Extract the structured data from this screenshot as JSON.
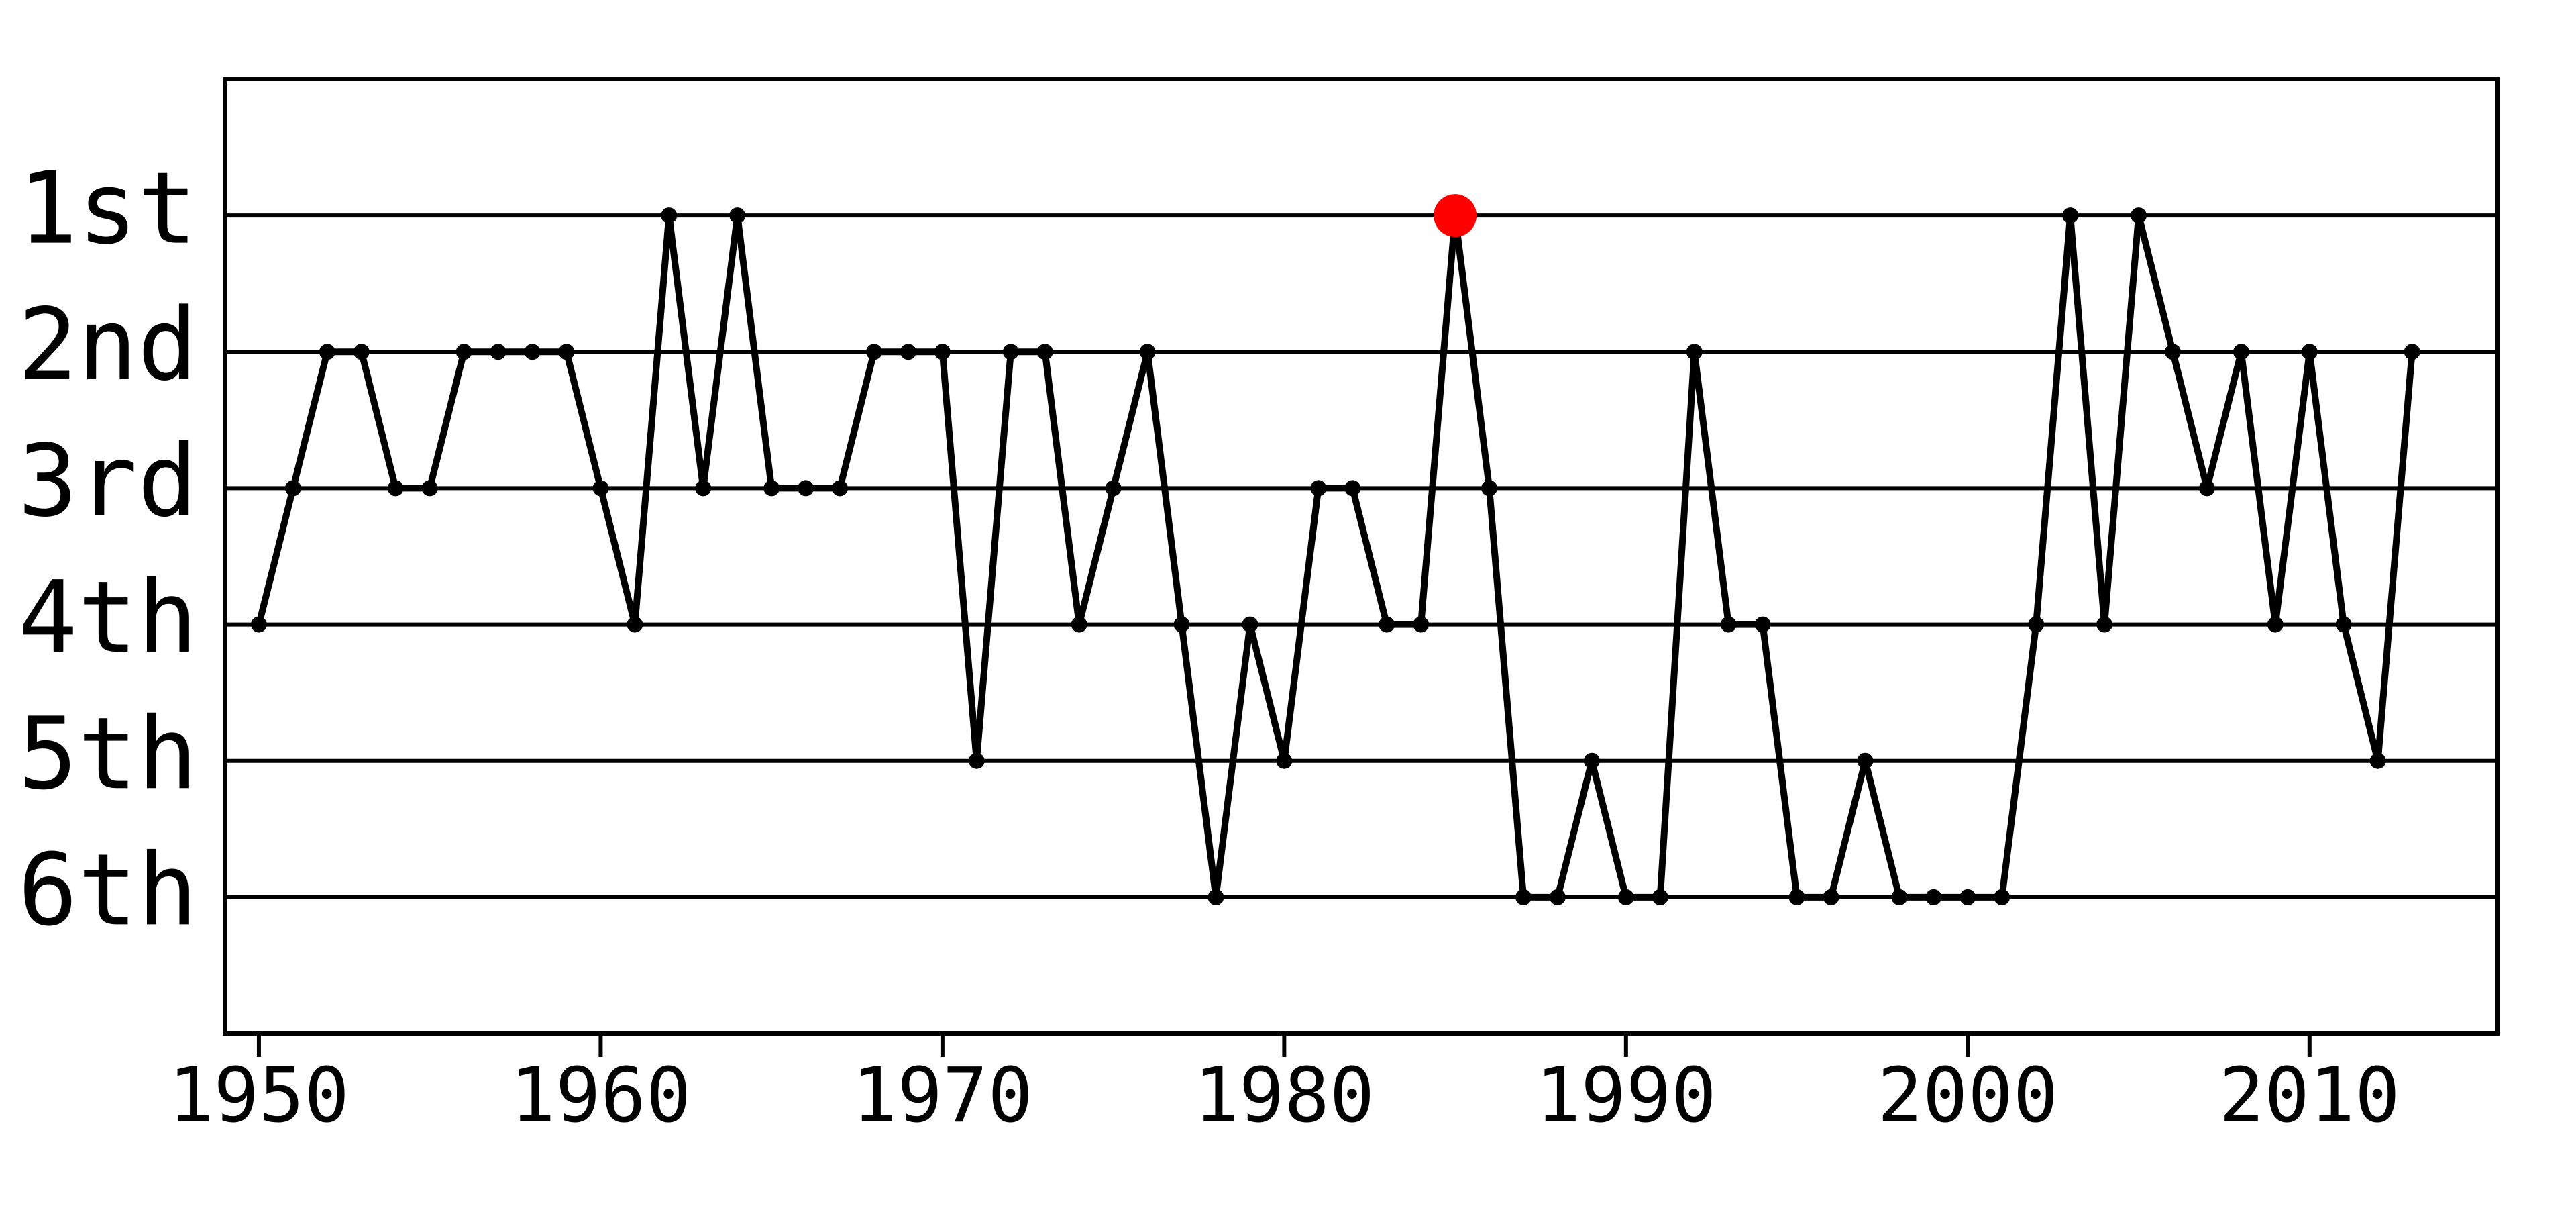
{
  "chart_data": {
    "type": "line",
    "x": [
      1950,
      1951,
      1952,
      1953,
      1954,
      1955,
      1956,
      1957,
      1958,
      1959,
      1960,
      1961,
      1962,
      1963,
      1964,
      1965,
      1966,
      1967,
      1968,
      1969,
      1970,
      1971,
      1972,
      1973,
      1974,
      1975,
      1976,
      1977,
      1978,
      1979,
      1980,
      1981,
      1982,
      1983,
      1984,
      1985,
      1986,
      1987,
      1988,
      1989,
      1990,
      1991,
      1992,
      1993,
      1994,
      1995,
      1996,
      1997,
      1998,
      1999,
      2000,
      2001,
      2002,
      2003,
      2004,
      2005,
      2006,
      2007,
      2008,
      2009,
      2010,
      2011,
      2012,
      2013
    ],
    "values": [
      4,
      3,
      2,
      2,
      3,
      3,
      2,
      2,
      2,
      2,
      3,
      4,
      1,
      3,
      1,
      3,
      3,
      3,
      2,
      2,
      2,
      5,
      2,
      2,
      4,
      3,
      2,
      4,
      6,
      4,
      5,
      3,
      3,
      4,
      4,
      1,
      3,
      6,
      6,
      5,
      6,
      6,
      2,
      4,
      4,
      6,
      6,
      5,
      6,
      6,
      6,
      6,
      4,
      1,
      4,
      1,
      2,
      3,
      2,
      4,
      2,
      4,
      5,
      2
    ],
    "color": "#000000",
    "highlight": {
      "index": 35,
      "color": "#ff0000"
    },
    "xlim": [
      1949,
      2015.5
    ],
    "ylim": [
      7,
      0
    ],
    "xticks": [
      1950,
      1960,
      1970,
      1980,
      1990,
      2000,
      2010
    ],
    "yticks": [
      {
        "value": 1,
        "label": "1st"
      },
      {
        "value": 2,
        "label": "2nd"
      },
      {
        "value": 3,
        "label": "3rd"
      },
      {
        "value": 4,
        "label": "4th"
      },
      {
        "value": 5,
        "label": "5th"
      },
      {
        "value": 6,
        "label": "6th"
      }
    ],
    "grid": true
  }
}
